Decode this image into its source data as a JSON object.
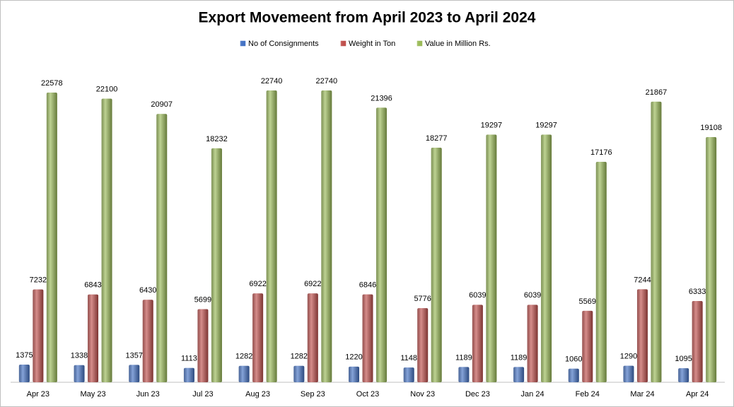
{
  "chart_data": {
    "type": "bar",
    "title": "Export Movemeent from April 2023 to April 2024",
    "categories": [
      "Apr 23",
      "May 23",
      "Jun 23",
      "Jul 23",
      "Aug 23",
      "Sep 23",
      "Oct 23",
      "Nov 23",
      "Dec 23",
      "Jan 24",
      "Feb 24",
      "Mar 24",
      "Apr 24"
    ],
    "series": [
      {
        "name": "No of Consignments",
        "color": "#4472c4",
        "values": [
          1375,
          1338,
          1357,
          1113,
          1282,
          1282,
          1220,
          1148,
          1189,
          1189,
          1060,
          1290,
          1095
        ]
      },
      {
        "name": "Weight in Ton",
        "color": "#c0504d",
        "values": [
          7232,
          6843,
          6430,
          5699,
          6922,
          6922,
          6846,
          5776,
          6039,
          6039,
          5569,
          7244,
          6333
        ]
      },
      {
        "name": "Value in Million Rs.",
        "color": "#9bbb59",
        "values": [
          22578,
          22100,
          20907,
          18232,
          22740,
          22740,
          21396,
          18277,
          19297,
          19297,
          17176,
          21867,
          19108
        ]
      }
    ]
  }
}
